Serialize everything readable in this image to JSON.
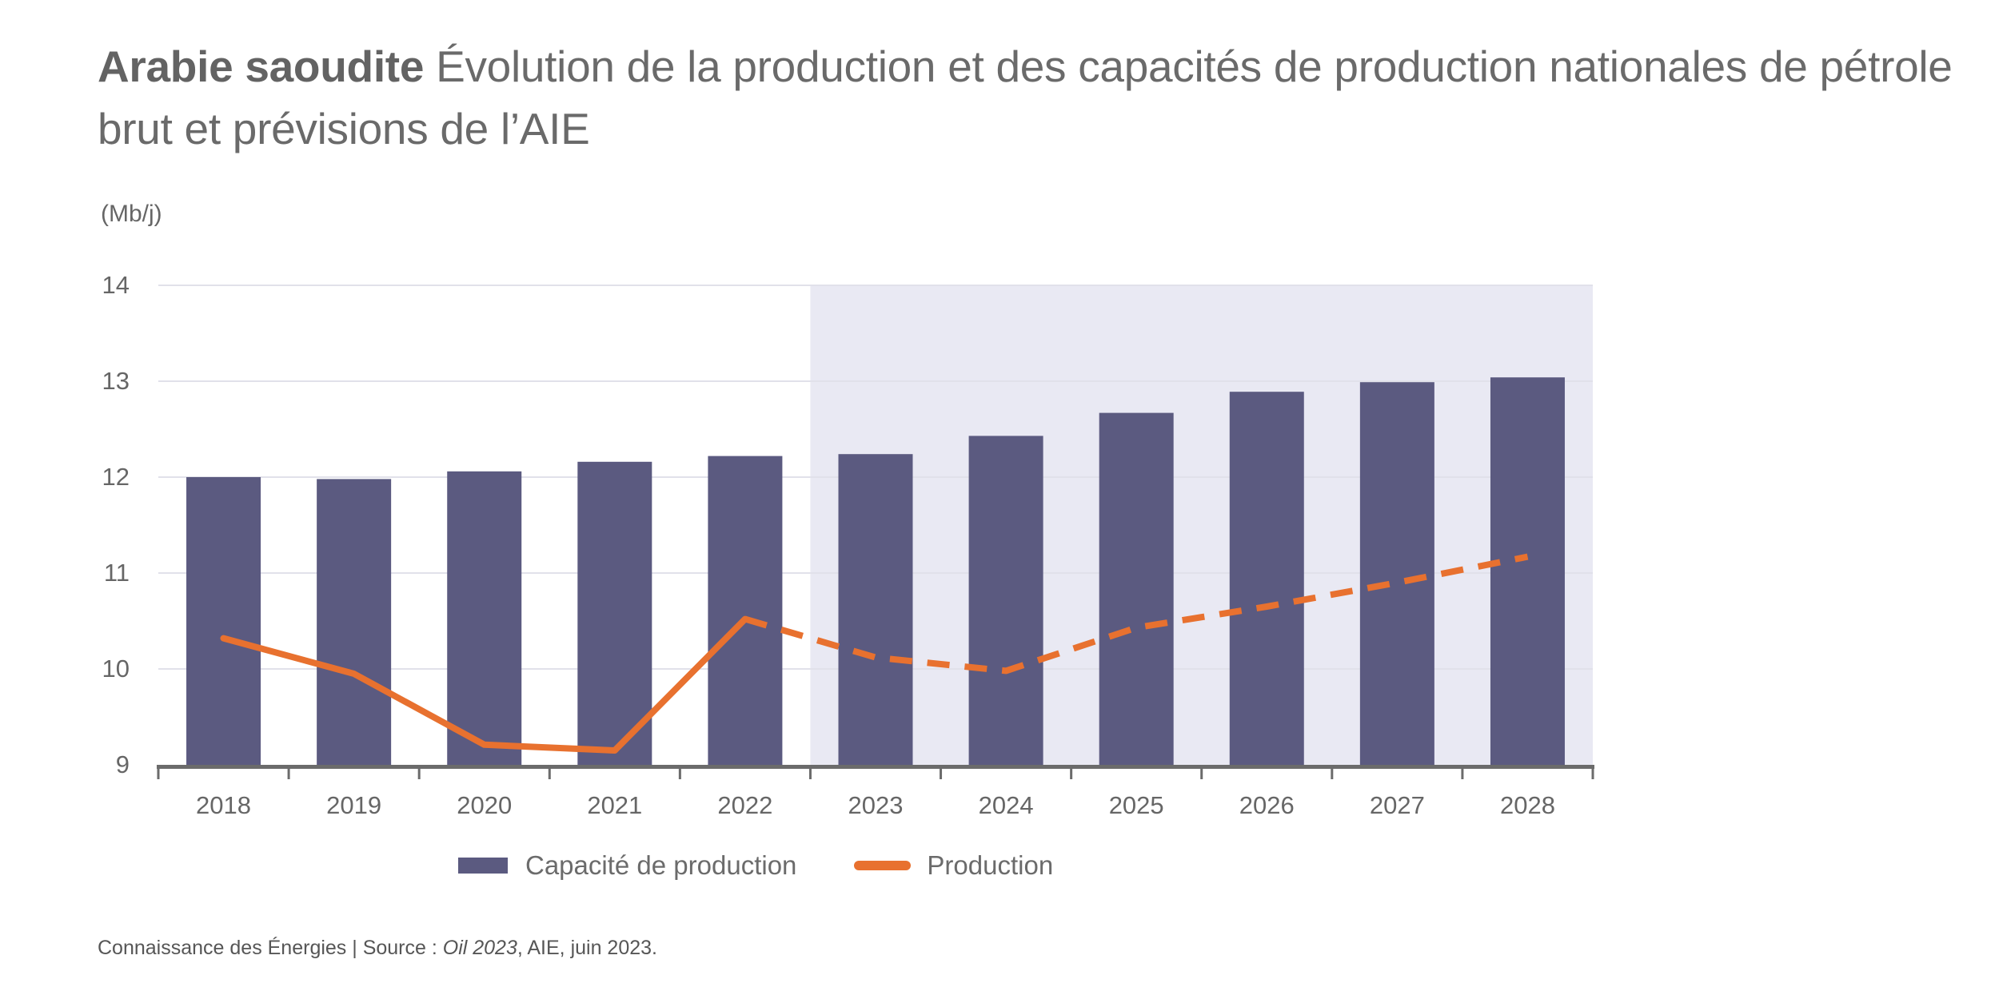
{
  "title": {
    "bold": "Arabie saoudite",
    "rest": " Évolution de la production et des capacités de production nationales de pétrole brut et prévisions de l’AIE"
  },
  "axes": {
    "unit_label": "(Mb/j)",
    "y_ticks": [
      "9",
      "10",
      "11",
      "12",
      "13",
      "14"
    ],
    "x_ticks": [
      "2018",
      "2019",
      "2020",
      "2021",
      "2022",
      "2023",
      "2024",
      "2025",
      "2026",
      "2027",
      "2028"
    ]
  },
  "legend": {
    "capacity": "Capacité de production",
    "production": "Production"
  },
  "footer": {
    "prefix": "Connaissance des Énergies | Source : ",
    "source_italic": "Oil 2023",
    "suffix": ", AIE, juin 2023."
  },
  "colors": {
    "bar": "#5b5a80",
    "line": "#e8712f",
    "forecast_shading": "#e9e9f3",
    "gridline": "#e1e1ea",
    "axis": "#6b6b6b",
    "label_text": "#666666"
  },
  "chart_data": {
    "type": "bar+line",
    "title": "Arabie saoudite — Évolution de la production et des capacités de production nationales de pétrole brut et prévisions de l’AIE",
    "ylabel": "(Mb/j)",
    "categories": [
      "2018",
      "2019",
      "2020",
      "2021",
      "2022",
      "2023",
      "2024",
      "2025",
      "2026",
      "2027",
      "2028"
    ],
    "series": [
      {
        "name": "Capacité de production",
        "type": "bar",
        "color": "#5b5a80",
        "values": [
          12.0,
          11.98,
          12.06,
          12.16,
          12.22,
          12.24,
          12.43,
          12.67,
          12.89,
          12.99,
          13.04
        ]
      },
      {
        "name": "Production",
        "type": "line",
        "color": "#e8712f",
        "values": [
          10.32,
          9.95,
          9.21,
          9.15,
          10.52,
          10.12,
          9.98,
          10.43,
          10.65,
          10.9,
          11.17
        ],
        "style_note": "solid through 2022, dashed (forecast) from 2022 to 2028",
        "solid_until_category": "2022"
      }
    ],
    "ylim": [
      9,
      14
    ],
    "yticks": [
      9,
      10,
      11,
      12,
      13,
      14
    ],
    "grid": true,
    "legend_position": "bottom",
    "forecast": {
      "from_category": "2023",
      "shaded": true,
      "shading_color": "#e9e9f3"
    }
  }
}
